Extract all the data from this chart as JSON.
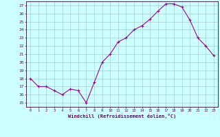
{
  "x": [
    0,
    1,
    2,
    3,
    4,
    5,
    6,
    7,
    8,
    9,
    10,
    11,
    12,
    13,
    14,
    15,
    16,
    17,
    18,
    19,
    20,
    21,
    22,
    23
  ],
  "y": [
    18,
    17,
    17,
    16.5,
    16,
    16.7,
    16.5,
    15,
    17.5,
    20,
    21,
    22.5,
    23,
    24,
    24.5,
    25.3,
    26.3,
    27.2,
    27.2,
    26.8,
    25.2,
    23,
    22,
    20.8
  ],
  "line_color": "#990099",
  "marker": "+",
  "bg_color": "#ccffff",
  "grid_color": "#aacccc",
  "xlabel": "Windchill (Refroidissement éolien,°C)",
  "ylim_min": 14.5,
  "ylim_max": 27.5,
  "yticks": [
    15,
    16,
    17,
    18,
    19,
    20,
    21,
    22,
    23,
    24,
    25,
    26,
    27
  ],
  "xticks": [
    0,
    1,
    2,
    3,
    4,
    5,
    6,
    7,
    8,
    9,
    10,
    11,
    12,
    13,
    14,
    15,
    16,
    17,
    18,
    19,
    20,
    21,
    22,
    23
  ],
  "axis_color": "#330033",
  "tick_color": "#660066",
  "label_color": "#660066"
}
